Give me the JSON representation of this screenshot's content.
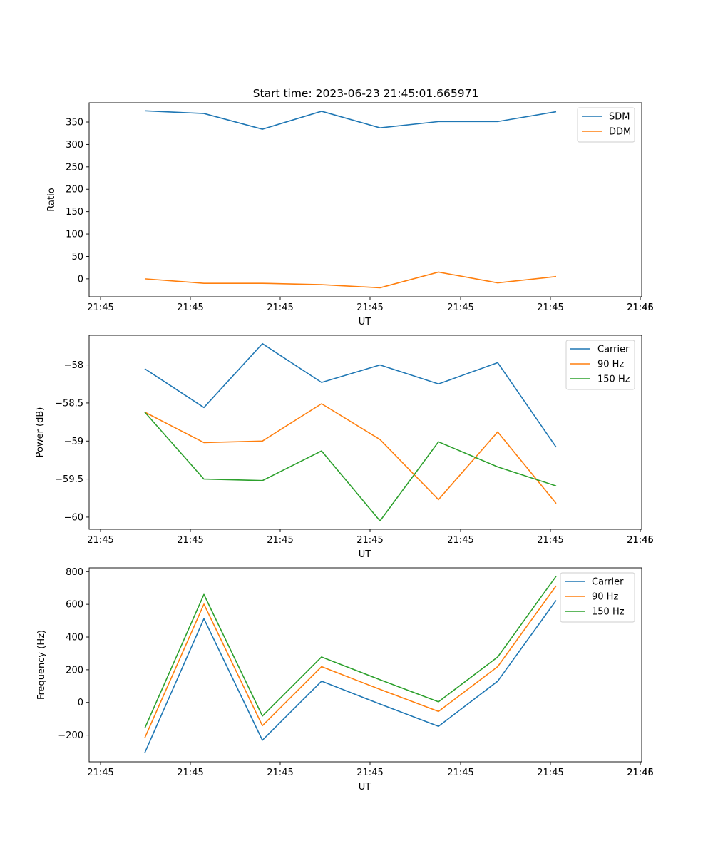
{
  "figure": {
    "title": "Start time: 2023-06-23 21:45:01.665971"
  },
  "chart_data": [
    {
      "type": "line",
      "xlabel": "UT",
      "ylabel": "Ratio",
      "xticks": [
        "21:45",
        "21:45",
        "21:45",
        "21:45",
        "21:45",
        "21:45",
        "21:45",
        "21:46"
      ],
      "ylim": [
        -40,
        393
      ],
      "yticks": [
        0,
        50,
        100,
        150,
        200,
        250,
        300,
        350
      ],
      "legend_position": "upper right",
      "grid": false,
      "series": [
        {
          "name": "SDM",
          "color": "#1f77b4",
          "values": [
            375,
            369,
            334,
            374,
            337,
            351,
            351,
            373
          ]
        },
        {
          "name": "DDM",
          "color": "#ff7f0e",
          "values": [
            0,
            -10,
            -10,
            -13,
            -20,
            15,
            -9,
            5
          ]
        }
      ]
    },
    {
      "type": "line",
      "xlabel": "UT",
      "ylabel": "Power (dB)",
      "xticks": [
        "21:45",
        "21:45",
        "21:45",
        "21:45",
        "21:45",
        "21:45",
        "21:45",
        "21:46"
      ],
      "ylim": [
        -60.16,
        -57.61
      ],
      "yticks": [
        -60.0,
        -59.5,
        -59.0,
        -58.5,
        -58.0
      ],
      "legend_position": "upper right",
      "grid": false,
      "series": [
        {
          "name": "Carrier",
          "color": "#1f77b4",
          "values": [
            -58.05,
            -58.56,
            -57.72,
            -58.23,
            -58.0,
            -58.25,
            -57.97,
            -59.08
          ]
        },
        {
          "name": "90 Hz",
          "color": "#ff7f0e",
          "values": [
            -58.62,
            -59.02,
            -59.0,
            -58.51,
            -58.98,
            -59.77,
            -58.88,
            -59.82
          ]
        },
        {
          "name": "150 Hz",
          "color": "#2ca02c",
          "values": [
            -58.62,
            -59.5,
            -59.52,
            -59.13,
            -60.05,
            -59.01,
            -59.34,
            -59.59
          ]
        }
      ]
    },
    {
      "type": "line",
      "xlabel": "UT",
      "ylabel": "Frequency (Hz)",
      "xticks": [
        "21:45",
        "21:45",
        "21:45",
        "21:45",
        "21:45",
        "21:45",
        "21:45",
        "21:46"
      ],
      "ylim": [
        -363,
        823
      ],
      "yticks": [
        -200,
        0,
        200,
        400,
        600,
        800
      ],
      "legend_position": "upper right",
      "grid": false,
      "series": [
        {
          "name": "Carrier",
          "color": "#1f77b4",
          "values": [
            -308,
            512,
            -231,
            130,
            -10,
            -146,
            130,
            624
          ]
        },
        {
          "name": "90 Hz",
          "color": "#ff7f0e",
          "values": [
            -217,
            601,
            -142,
            219,
            80,
            -55,
            219,
            713
          ]
        },
        {
          "name": "150 Hz",
          "color": "#2ca02c",
          "values": [
            -158,
            660,
            -83,
            278,
            139,
            4,
            278,
            772
          ]
        }
      ]
    }
  ]
}
